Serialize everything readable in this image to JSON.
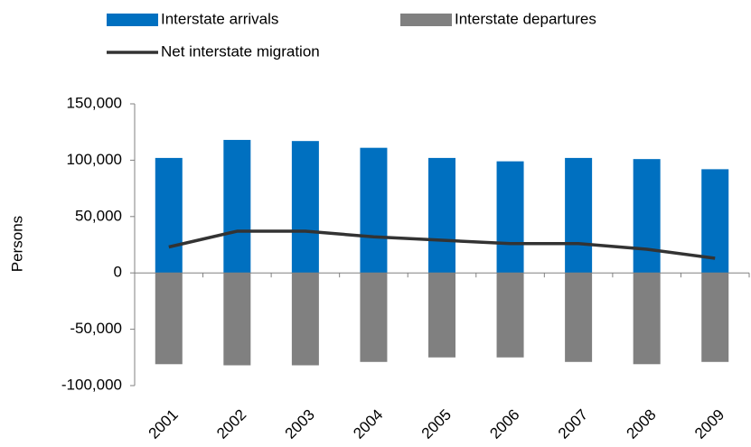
{
  "chart_data": {
    "type": "bar",
    "ylabel": "Persons",
    "categories": [
      "2001",
      "2002",
      "2003",
      "2004",
      "2005",
      "2006",
      "2007",
      "2008",
      "2009"
    ],
    "series": [
      {
        "name": "Interstate arrivals",
        "type": "bar",
        "color": "#0070c0",
        "values": [
          102000,
          118000,
          117000,
          111000,
          102000,
          99000,
          102000,
          101000,
          92000
        ]
      },
      {
        "name": "Interstate departures",
        "type": "bar",
        "color": "#808080",
        "values": [
          -81000,
          -82000,
          -82000,
          -79000,
          -75000,
          -75000,
          -79000,
          -81000,
          -79000
        ]
      },
      {
        "name": "Net interstate migration",
        "type": "line",
        "color": "#333333",
        "values": [
          23000,
          37000,
          37000,
          32000,
          29000,
          26000,
          26000,
          21000,
          13000
        ]
      }
    ],
    "ylim": [
      -100000,
      150000
    ],
    "yticks": [
      {
        "value": -100000,
        "label": "-100,000"
      },
      {
        "value": -50000,
        "label": "-50,000"
      },
      0,
      {
        "value": 50000,
        "label": "50,000"
      },
      {
        "value": 100000,
        "label": "100,000"
      },
      {
        "value": 150000,
        "label": "150,000"
      }
    ]
  }
}
